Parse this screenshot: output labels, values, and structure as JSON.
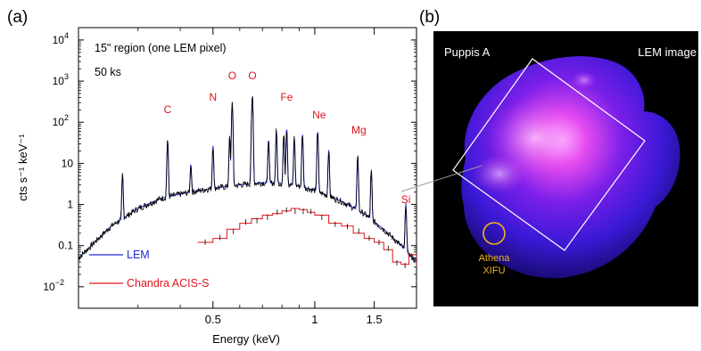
{
  "panel_a": {
    "label": "(a)",
    "annotations": {
      "region": "15\" region (one LEM pixel)",
      "exposure": "50 ks"
    },
    "elements": [
      {
        "text": "C",
        "energy": 0.367,
        "y": 58
      },
      {
        "text": "N",
        "energy": 0.5,
        "y": 130
      },
      {
        "text": "O",
        "energy": 0.57,
        "y": 420
      },
      {
        "text": "O",
        "energy": 0.654,
        "y": 420
      },
      {
        "text": "Fe",
        "energy": 0.826,
        "y": 160
      },
      {
        "text": "Ne",
        "energy": 1.03,
        "y": 72
      },
      {
        "text": "Mg",
        "energy": 1.35,
        "y": 30
      },
      {
        "text": "Si",
        "energy": 1.86,
        "y": 1.0
      }
    ],
    "legend": [
      {
        "name": "LEM",
        "color": "#1f2bd6"
      },
      {
        "name": "Chandra ACIS-S",
        "color": "#e0141e"
      }
    ],
    "xlabel": "Energy (keV)",
    "ylabel": "cts s⁻¹ keV⁻¹",
    "xticks": [
      {
        "v": 0.5,
        "t": "0.5"
      },
      {
        "v": 1,
        "t": "1"
      },
      {
        "v": 1.5,
        "t": "1.5"
      }
    ],
    "yticks": [
      {
        "e": 4,
        "b": "10",
        "s": "4"
      },
      {
        "e": 3,
        "b": "10",
        "s": "3"
      },
      {
        "e": 2,
        "b": "10",
        "s": "2"
      },
      {
        "e": 1,
        "b": "10",
        "s": ""
      },
      {
        "e": 0,
        "b": "1",
        "s": ""
      },
      {
        "e": -1,
        "b": "0.1",
        "s": ""
      },
      {
        "e": -2,
        "b": "10",
        "s": "−2"
      }
    ]
  },
  "panel_b": {
    "label": "(b)",
    "title_left": "Puppis A",
    "title_right": "LEM image",
    "circle_label_1": "Athena",
    "circle_label_2": "XIFU"
  },
  "chart_data": {
    "type": "line",
    "xlabel": "Energy (keV)",
    "ylabel": "cts s⁻¹ keV⁻¹",
    "xscale": "log",
    "yscale": "log",
    "xlim": [
      0.2,
      2.0
    ],
    "ylim": [
      0.003,
      20000
    ],
    "series": [
      {
        "name": "LEM",
        "color": "#1f2bd6",
        "continuum": {
          "energy": [
            0.2,
            0.25,
            0.3,
            0.35,
            0.4,
            0.5,
            0.6,
            0.7,
            0.8,
            0.9,
            1.0,
            1.2,
            1.4,
            1.6,
            1.8,
            2.0
          ],
          "value": [
            0.05,
            0.3,
            0.8,
            1.4,
            1.8,
            2.5,
            3.0,
            3.4,
            3.3,
            2.8,
            2.2,
            1.2,
            0.6,
            0.25,
            0.1,
            0.04
          ]
        },
        "lines": [
          {
            "e": 0.27,
            "v": 5
          },
          {
            "e": 0.367,
            "v": 35
          },
          {
            "e": 0.43,
            "v": 8
          },
          {
            "e": 0.5,
            "v": 25
          },
          {
            "e": 0.56,
            "v": 40
          },
          {
            "e": 0.57,
            "v": 300
          },
          {
            "e": 0.65,
            "v": 30
          },
          {
            "e": 0.654,
            "v": 420
          },
          {
            "e": 0.73,
            "v": 35
          },
          {
            "e": 0.77,
            "v": 60
          },
          {
            "e": 0.81,
            "v": 45
          },
          {
            "e": 0.826,
            "v": 70
          },
          {
            "e": 0.87,
            "v": 40
          },
          {
            "e": 0.92,
            "v": 50
          },
          {
            "e": 1.02,
            "v": 60
          },
          {
            "e": 1.1,
            "v": 20
          },
          {
            "e": 1.34,
            "v": 15
          },
          {
            "e": 1.47,
            "v": 6
          },
          {
            "e": 1.86,
            "v": 1.0
          }
        ]
      },
      {
        "name": "Chandra ACIS-S",
        "color": "#e0141e",
        "energy": [
          0.45,
          0.5,
          0.55,
          0.6,
          0.65,
          0.7,
          0.75,
          0.8,
          0.85,
          0.9,
          0.95,
          1.0,
          1.1,
          1.2,
          1.3,
          1.4,
          1.5,
          1.6,
          1.7,
          1.8,
          1.9,
          2.0
        ],
        "value": [
          0.12,
          0.15,
          0.25,
          0.35,
          0.45,
          0.55,
          0.6,
          0.7,
          0.8,
          0.75,
          0.65,
          0.55,
          0.35,
          0.3,
          0.2,
          0.15,
          0.12,
          0.08,
          0.04,
          0.035,
          0.06,
          0.03
        ]
      }
    ]
  }
}
